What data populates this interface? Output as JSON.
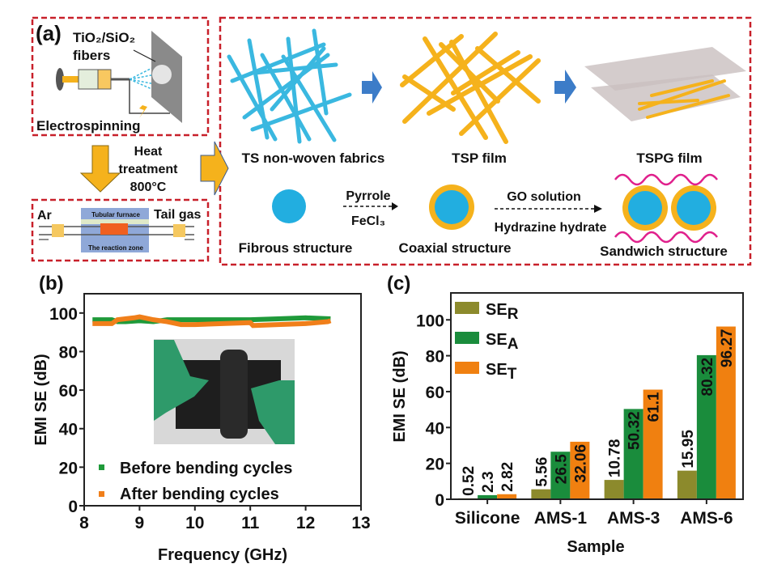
{
  "panel_a": {
    "label": "(a)",
    "fibers_label": "TiO₂/SiO₂",
    "fibers_label2": "fibers",
    "electrospinning": "Electrospinning",
    "heat_treatment": [
      "Heat",
      "treatment",
      "800°C"
    ],
    "furnace": {
      "ar": "Ar",
      "tail_gas": "Tail gas",
      "tubular_furnace": "Tubular furnace",
      "reaction_zone": "The reaction zone"
    },
    "stages": [
      "TS non-woven fabrics",
      "TSP film",
      "TSPG film"
    ],
    "step1": {
      "top": "Pyrrole",
      "bottom": "FeCl₃"
    },
    "step2": {
      "top": "GO solution",
      "bottom": "Hydrazine hydrate"
    },
    "structures": [
      "Fibrous structure",
      "Coaxial structure",
      "Sandwich structure"
    ],
    "colors": {
      "fiber": "#3ab8e0",
      "coating": "#f5b21c",
      "graphene": "#e0208c",
      "arrow_blue": "#3c7cc8",
      "border": "#c8202a"
    }
  },
  "chart_data": [
    {
      "panel": "(b)",
      "type": "scatter",
      "xlabel": "Frequency (GHz)",
      "ylabel": "EMI SE (dB)",
      "xlim": [
        8,
        13
      ],
      "ylim": [
        0,
        110
      ],
      "xticks": [
        8,
        9,
        10,
        11,
        12,
        13
      ],
      "yticks": [
        0,
        20,
        40,
        60,
        80,
        100
      ],
      "legend_position": "bottom-left",
      "inset": "photo of bent black film held by green-gloved hands",
      "series": [
        {
          "name": "Before bending cycles",
          "color": "#1f9a3a",
          "x": [
            8.15,
            8.5,
            8.6,
            8.75,
            9.0,
            9.25,
            9.5,
            10.0,
            10.5,
            11.0,
            11.5,
            12.0,
            12.45
          ],
          "y": [
            96.5,
            96.5,
            95.5,
            95.5,
            96.0,
            95.5,
            96.5,
            96.5,
            96.5,
            96.5,
            97.0,
            97.5,
            97.0
          ]
        },
        {
          "name": "After bending cycles",
          "color": "#f07f1a",
          "x": [
            8.15,
            8.5,
            8.6,
            8.9,
            9.0,
            9.25,
            9.5,
            9.75,
            10.0,
            10.5,
            11.0,
            11.05,
            11.5,
            12.0,
            12.4,
            12.45
          ],
          "y": [
            94.5,
            94.5,
            96.5,
            97.5,
            98.0,
            96.5,
            95.5,
            94.0,
            94.0,
            94.5,
            95.0,
            93.5,
            94.0,
            94.5,
            95.5,
            96.0
          ]
        }
      ]
    },
    {
      "panel": "(c)",
      "type": "bar",
      "xlabel": "Sample",
      "ylabel": "EMI SE (dB)",
      "ylim": [
        0,
        115
      ],
      "yticks": [
        0,
        20,
        40,
        60,
        80,
        100
      ],
      "categories": [
        "Silicone",
        "AMS-1",
        "AMS-3",
        "AMS-6"
      ],
      "legend_position": "top-left",
      "series": [
        {
          "name": "SE",
          "sub": "R",
          "color": "#8c8a2c",
          "values": [
            0.52,
            5.56,
            10.78,
            15.95
          ],
          "labels": [
            "0.52",
            "5.56",
            "10.78",
            "15.95"
          ]
        },
        {
          "name": "SE",
          "sub": "A",
          "color": "#1a8c3c",
          "values": [
            2.3,
            26.5,
            50.32,
            80.32
          ],
          "labels": [
            "2.3",
            "26.5",
            "50.32",
            "80.32"
          ]
        },
        {
          "name": "SE",
          "sub": "T",
          "color": "#f08010",
          "values": [
            2.82,
            32.06,
            61.1,
            96.27
          ],
          "labels": [
            "2.82",
            "32.06",
            "61.1",
            "96.27"
          ]
        }
      ]
    }
  ]
}
